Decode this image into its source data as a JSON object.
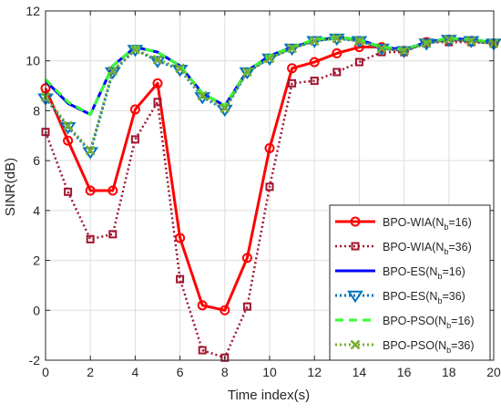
{
  "chart_data": {
    "type": "line",
    "title": "",
    "xlabel": "Time index(s)",
    "ylabel": "SINR(dB)",
    "xlim": [
      0,
      20
    ],
    "ylim": [
      -2,
      12
    ],
    "xticks": [
      0,
      2,
      4,
      6,
      8,
      10,
      12,
      14,
      16,
      18,
      20
    ],
    "yticks": [
      -2,
      0,
      2,
      4,
      6,
      8,
      10,
      12
    ],
    "grid": true,
    "legend_position": "bottom-right",
    "x": [
      0,
      1,
      2,
      3,
      4,
      5,
      6,
      7,
      8,
      9,
      10,
      11,
      12,
      13,
      14,
      15,
      16,
      17,
      18,
      19,
      20
    ],
    "series": [
      {
        "name": "BPO-WIA(N_b=16)",
        "legend_main": "BPO-WIA(N",
        "legend_sub": "b",
        "legend_tail": "=16)",
        "color": "#ff0000",
        "dash": "",
        "width": 3,
        "marker": "circle",
        "values": [
          8.9,
          6.8,
          4.8,
          4.8,
          8.05,
          9.1,
          2.9,
          0.2,
          0.0,
          2.1,
          6.5,
          9.7,
          9.95,
          10.3,
          10.55,
          10.55,
          10.4,
          10.75,
          10.85,
          10.8,
          10.7
        ]
      },
      {
        "name": "BPO-WIA(N_b=36)",
        "legend_main": "BPO-WIA(N",
        "legend_sub": "b",
        "legend_tail": "=36)",
        "color": "#a2142f",
        "dash": "2,3",
        "width": 2.5,
        "marker": "square",
        "values": [
          7.15,
          4.75,
          2.85,
          3.05,
          6.85,
          8.35,
          1.25,
          -1.6,
          -1.9,
          0.15,
          4.95,
          9.1,
          9.2,
          9.55,
          9.95,
          10.35,
          10.35,
          10.75,
          10.75,
          10.75,
          10.7
        ]
      },
      {
        "name": "BPO-ES(N_b=16)",
        "legend_main": "BPO-ES(N",
        "legend_sub": "b",
        "legend_tail": "=16)",
        "color": "#0000ff",
        "dash": "",
        "width": 3,
        "marker": "none",
        "values": [
          9.2,
          8.3,
          7.85,
          9.8,
          10.55,
          10.35,
          9.8,
          8.7,
          8.2,
          9.6,
          10.2,
          10.55,
          10.8,
          10.95,
          10.85,
          10.55,
          10.45,
          10.75,
          10.9,
          10.85,
          10.75
        ]
      },
      {
        "name": "BPO-ES(N_b=36)",
        "legend_main": "BPO-ES(N",
        "legend_sub": "b",
        "legend_tail": "=36)",
        "color": "#0072bd",
        "dash": "2,3",
        "width": 3,
        "marker": "triangle",
        "values": [
          8.5,
          7.35,
          6.35,
          9.55,
          10.45,
          10.0,
          9.65,
          8.55,
          8.05,
          9.55,
          10.1,
          10.5,
          10.8,
          10.9,
          10.8,
          10.5,
          10.4,
          10.7,
          10.85,
          10.8,
          10.7
        ]
      },
      {
        "name": "BPO-PSO(N_b=16)",
        "legend_main": "BPO-PSO(N",
        "legend_sub": "b",
        "legend_tail": "=16)",
        "color": "#33ff33",
        "dash": "9,6",
        "width": 3,
        "marker": "none",
        "values": [
          9.25,
          8.35,
          7.85,
          9.8,
          10.55,
          10.35,
          9.8,
          8.7,
          8.2,
          9.6,
          10.2,
          10.55,
          10.85,
          10.95,
          10.85,
          10.55,
          10.45,
          10.75,
          10.9,
          10.85,
          10.75
        ]
      },
      {
        "name": "BPO-PSO(N_b=36)",
        "legend_main": "BPO-PSO(N",
        "legend_sub": "b",
        "legend_tail": "=36)",
        "color": "#77ac30",
        "dash": "2,3",
        "width": 3,
        "marker": "x",
        "values": [
          8.55,
          7.4,
          6.4,
          9.6,
          10.45,
          10.05,
          9.7,
          8.6,
          8.1,
          9.55,
          10.1,
          10.5,
          10.8,
          10.9,
          10.8,
          10.5,
          10.4,
          10.7,
          10.85,
          10.8,
          10.7
        ]
      }
    ]
  }
}
